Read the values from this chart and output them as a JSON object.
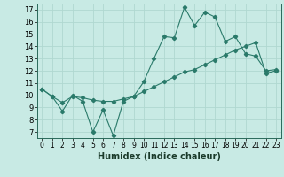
{
  "title": "",
  "xlabel": "Humidex (Indice chaleur)",
  "bg_color": "#c8eae4",
  "grid_color": "#b0d8d0",
  "line_color": "#2a7a6a",
  "xlim": [
    -0.5,
    23.5
  ],
  "ylim": [
    6.5,
    17.5
  ],
  "xticks": [
    0,
    1,
    2,
    3,
    4,
    5,
    6,
    7,
    8,
    9,
    10,
    11,
    12,
    13,
    14,
    15,
    16,
    17,
    18,
    19,
    20,
    21,
    22,
    23
  ],
  "yticks": [
    7,
    8,
    9,
    10,
    11,
    12,
    13,
    14,
    15,
    16,
    17
  ],
  "series1_x": [
    0,
    1,
    2,
    3,
    4,
    5,
    6,
    7,
    8,
    9,
    10,
    11,
    12,
    13,
    14,
    15,
    16,
    17,
    18,
    19,
    20,
    21,
    22,
    23
  ],
  "series1_y": [
    10.5,
    9.9,
    8.7,
    10.0,
    9.5,
    7.0,
    8.8,
    6.7,
    9.5,
    9.9,
    11.1,
    13.0,
    14.8,
    14.7,
    17.2,
    15.7,
    16.8,
    16.4,
    14.4,
    14.8,
    13.4,
    13.2,
    12.0,
    12.1
  ],
  "series2_x": [
    0,
    1,
    2,
    3,
    4,
    5,
    6,
    7,
    8,
    9,
    10,
    11,
    12,
    13,
    14,
    15,
    16,
    17,
    18,
    19,
    20,
    21,
    22,
    23
  ],
  "series2_y": [
    10.5,
    9.9,
    9.4,
    9.9,
    9.8,
    9.6,
    9.5,
    9.5,
    9.7,
    9.9,
    10.3,
    10.7,
    11.1,
    11.5,
    11.9,
    12.1,
    12.5,
    12.9,
    13.3,
    13.7,
    14.0,
    14.3,
    11.8,
    12.0
  ],
  "xlabel_fontsize": 7,
  "tick_fontsize": 5.5
}
